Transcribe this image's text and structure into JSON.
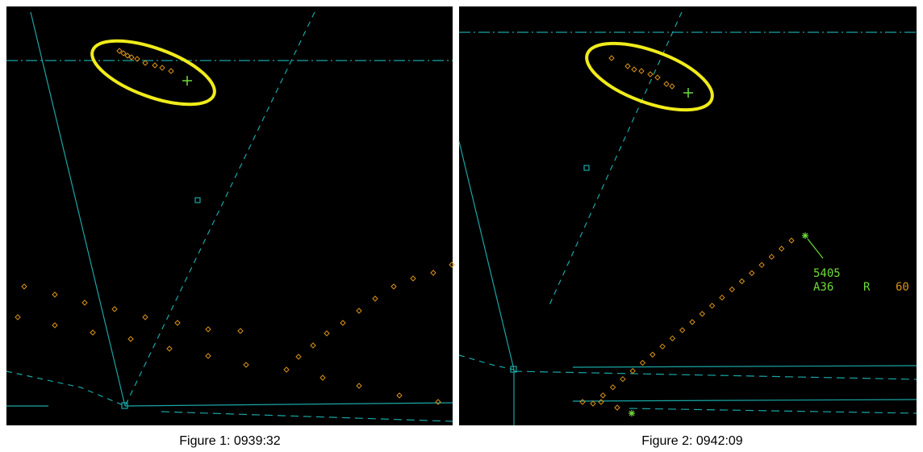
{
  "figures": [
    {
      "caption": "Figure 1: 0939:32"
    },
    {
      "caption": "Figure 2: 0942:09",
      "data_block": {
        "code": "5405",
        "line2": [
          "A36",
          "R",
          "60"
        ]
      }
    }
  ]
}
